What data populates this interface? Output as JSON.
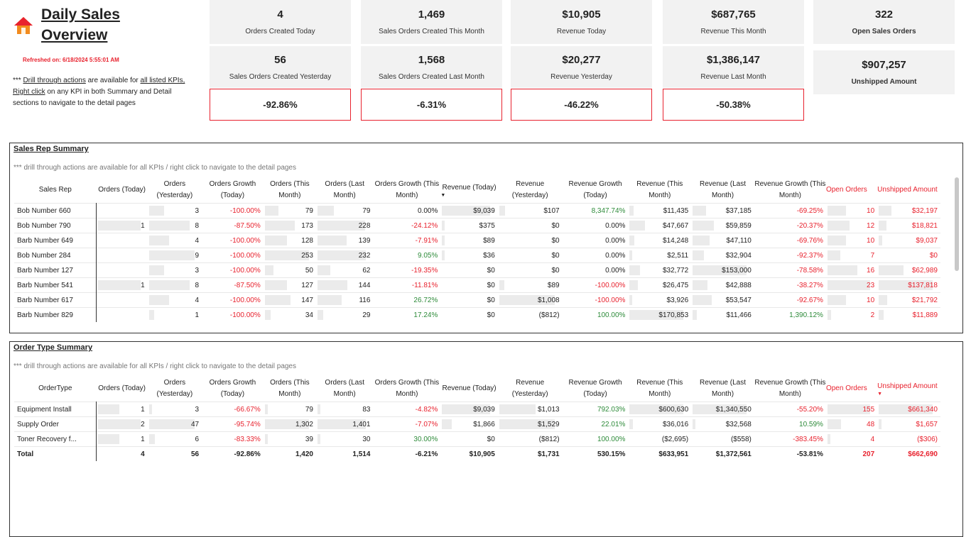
{
  "header": {
    "title_line1": "Daily Sales",
    "title_line2": "Overview",
    "home_icon": "home-icon",
    "refreshed": "Refreshed on: 6/18/2024 5:55:01 AM",
    "note_parts": [
      "*** ",
      "Drill through actions",
      " are available for ",
      "all listed KPIs,",
      " ",
      "Right click",
      " on any KPI in both Summary and Detail sections to navigate to the detail pages"
    ]
  },
  "kpis": [
    {
      "value": "4",
      "label": "Orders Created Today"
    },
    {
      "value": "1,469",
      "label": "Sales Orders Created This Month"
    },
    {
      "value": "$10,905",
      "label": "Revenue Today"
    },
    {
      "value": "$687,765",
      "label": "Revenue This Month"
    },
    {
      "value": "322",
      "label": "Open Sales Orders"
    },
    {
      "value": "56",
      "label": "Sales Orders Created Yesterday"
    },
    {
      "value": "1,568",
      "label": "Sales Orders Created Last Month"
    },
    {
      "value": "$20,277",
      "label": "Revenue Yesterday"
    },
    {
      "value": "$1,386,147",
      "label": "Revenue Last Month"
    },
    {
      "value": "$907,257",
      "label": "Unshipped Amount"
    }
  ],
  "growth": [
    "-92.86%",
    "-6.31%",
    "-46.22%",
    "-50.38%"
  ],
  "colors": {
    "accent_red": "#e8222e",
    "positive_green": "#2e8b3a",
    "kpi_bg": "#f2f2f2",
    "bar_bg": "#ebebeb"
  },
  "sales_rep": {
    "title": "Sales Rep Summary",
    "note": "*** drill through actions are available for all KPIs / right click to navigate to the detail pages",
    "columns": [
      "Sales Rep",
      "Orders (Today)",
      "Orders (Yesterday)",
      "Orders Growth (Today)",
      "Orders (This Month)",
      "Orders (Last Month)",
      "Orders Growth (This Month)",
      "Revenue (Today)",
      "Revenue (Yesterday)",
      "Revenue Growth (Today)",
      "Revenue (This Month)",
      "Revenue (Last Month)",
      "Revenue Growth (This Month)",
      "Open Orders",
      "Unshipped Amount"
    ],
    "sort_indicator": "▼",
    "rows": [
      [
        "Bob Number 660",
        "",
        "3",
        "-100.00%",
        "79",
        "79",
        "0.00%",
        "$9,039",
        "$107",
        "8,347.74%",
        "$11,435",
        "$37,185",
        "-69.25%",
        "10",
        "$32,197"
      ],
      [
        "Bob Number 790",
        "1",
        "8",
        "-87.50%",
        "173",
        "228",
        "-24.12%",
        "$375",
        "$0",
        "0.00%",
        "$47,667",
        "$59,859",
        "-20.37%",
        "12",
        "$18,821"
      ],
      [
        "Barb Number 649",
        "",
        "4",
        "-100.00%",
        "128",
        "139",
        "-7.91%",
        "$89",
        "$0",
        "0.00%",
        "$14,248",
        "$47,110",
        "-69.76%",
        "10",
        "$9,037"
      ],
      [
        "Bob Number 284",
        "",
        "9",
        "-100.00%",
        "253",
        "232",
        "9.05%",
        "$36",
        "$0",
        "0.00%",
        "$2,511",
        "$32,904",
        "-92.37%",
        "7",
        "$0"
      ],
      [
        "Barb Number 127",
        "",
        "3",
        "-100.00%",
        "50",
        "62",
        "-19.35%",
        "$0",
        "$0",
        "0.00%",
        "$32,772",
        "$153,000",
        "-78.58%",
        "16",
        "$62,989"
      ],
      [
        "Barb Number 541",
        "1",
        "8",
        "-87.50%",
        "127",
        "144",
        "-11.81%",
        "$0",
        "$89",
        "-100.00%",
        "$26,475",
        "$42,888",
        "-38.27%",
        "23",
        "$137,818"
      ],
      [
        "Barb Number 617",
        "",
        "4",
        "-100.00%",
        "147",
        "116",
        "26.72%",
        "$0",
        "$1,008",
        "-100.00%",
        "$3,926",
        "$53,547",
        "-92.67%",
        "10",
        "$21,792"
      ],
      [
        "Barb Number 829",
        "",
        "1",
        "-100.00%",
        "34",
        "29",
        "17.24%",
        "$0",
        "($812)",
        "100.00%",
        "$170,853",
        "$11,466",
        "1,390.12%",
        "2",
        "$11,889"
      ]
    ]
  },
  "order_type": {
    "title": "Order Type Summary",
    "note": "*** drill through actions are available for all KPIs / right click to navigate to the detail pages",
    "columns": [
      "OrderType",
      "Orders (Today)",
      "Orders (Yesterday)",
      "Orders Growth (Today)",
      "Orders (This Month)",
      "Orders (Last Month)",
      "Orders Growth (This Month)",
      "Revenue (Today)",
      "Revenue (Yesterday)",
      "Revenue Growth (Today)",
      "Revenue (This Month)",
      "Revenue (Last Month)",
      "Revenue Growth (This Month)",
      "Open Orders",
      "Unshipped Amount"
    ],
    "sort_indicator": "▼",
    "rows": [
      [
        "Equipment Install",
        "1",
        "3",
        "-66.67%",
        "79",
        "83",
        "-4.82%",
        "$9,039",
        "$1,013",
        "792.03%",
        "$600,630",
        "$1,340,550",
        "-55.20%",
        "155",
        "$661,340"
      ],
      [
        "Supply Order",
        "2",
        "47",
        "-95.74%",
        "1,302",
        "1,401",
        "-7.07%",
        "$1,866",
        "$1,529",
        "22.01%",
        "$36,016",
        "$32,568",
        "10.59%",
        "48",
        "$1,657"
      ],
      [
        "Toner Recovery f...",
        "1",
        "6",
        "-83.33%",
        "39",
        "30",
        "30.00%",
        "$0",
        "($812)",
        "100.00%",
        "($2,695)",
        "($558)",
        "-383.45%",
        "4",
        "($306)"
      ]
    ],
    "total": [
      "Total",
      "4",
      "56",
      "-92.86%",
      "1,420",
      "1,514",
      "-6.21%",
      "$10,905",
      "$1,731",
      "530.15%",
      "$633,951",
      "$1,372,561",
      "-53.81%",
      "207",
      "$662,690"
    ]
  }
}
